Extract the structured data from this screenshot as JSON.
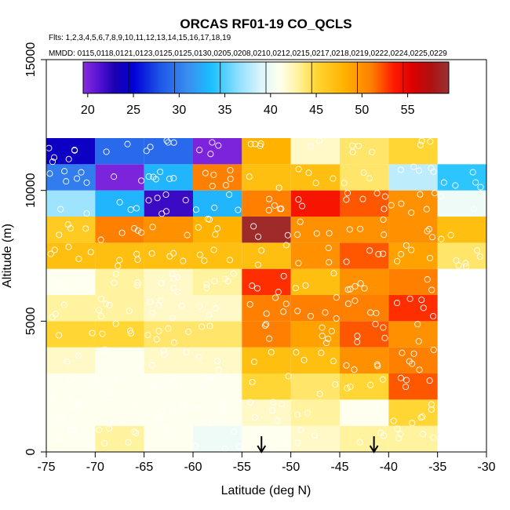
{
  "chart_data": {
    "type": "heatmap",
    "title": "ORCAS RF01-19 CO_QCLS",
    "flights_label": "Flts: 1,2,3,4,5,6,7,8,9,10,11,12,13,14,15,16,17,18,19",
    "dates_label": "MMDD: 0115,0118,0121,0123,0125,0125,0130,0205,0208,0210,0212,0215,0217,0218,0219,0222,0224,0225,0229",
    "xlabel": "Latitude (deg N)",
    "ylabel": "Altitude (m)",
    "xlim": [
      -75,
      -30
    ],
    "ylim": [
      0,
      15000
    ],
    "x_ticks": [
      -75,
      -70,
      -65,
      -60,
      -55,
      -50,
      -45,
      -40,
      -35,
      -30
    ],
    "x_tick_labels": [
      "-75",
      "-70",
      "-65",
      "-60",
      "-55",
      "-50",
      "-45",
      "-40",
      "-35",
      "-30"
    ],
    "y_ticks": [
      0,
      5000,
      10000,
      15000
    ],
    "y_tick_labels": [
      "0",
      "5000",
      "10000",
      "15000"
    ],
    "lat_edges": [
      -75,
      -70,
      -65,
      -60,
      -55,
      -50,
      -45,
      -40,
      -35,
      -30
    ],
    "alt_bin_height": 1000,
    "colorbar": {
      "range": [
        19.5,
        59.5
      ],
      "ticks": [
        20,
        25,
        30,
        35,
        40,
        45,
        50,
        55
      ],
      "tick_labels": [
        "20",
        "25",
        "30",
        "35",
        "40",
        "45",
        "50",
        "55"
      ],
      "stops": [
        {
          "v": 19.5,
          "c": "#8b2be0"
        },
        {
          "v": 21.5,
          "c": "#4b0fd0"
        },
        {
          "v": 23.0,
          "c": "#1a00b0"
        },
        {
          "v": 25.0,
          "c": "#0000d8"
        },
        {
          "v": 28.0,
          "c": "#1f58e8"
        },
        {
          "v": 31.0,
          "c": "#3a8ff0"
        },
        {
          "v": 33.5,
          "c": "#19bfff"
        },
        {
          "v": 36.5,
          "c": "#8ee0ff"
        },
        {
          "v": 39.0,
          "c": "#ddf6fb"
        },
        {
          "v": 41.0,
          "c": "#fffff0"
        },
        {
          "v": 43.0,
          "c": "#fff3a0"
        },
        {
          "v": 45.0,
          "c": "#ffd633"
        },
        {
          "v": 48.0,
          "c": "#ffb300"
        },
        {
          "v": 51.0,
          "c": "#ff8000"
        },
        {
          "v": 53.5,
          "c": "#ff1a00"
        },
        {
          "v": 55.5,
          "c": "#dd0000"
        },
        {
          "v": 57.5,
          "c": "#b01010"
        },
        {
          "v": 59.5,
          "c": "#993333"
        }
      ],
      "segment_lines": [
        19.5,
        24.5,
        29.5,
        34.5,
        39.5,
        44.5,
        49.5,
        54.5,
        59.5
      ]
    },
    "series": [
      {
        "name": "-75 to -70",
        "bins": [
          {
            "alt": 0,
            "value": 41
          },
          {
            "alt": 1000,
            "value": 41
          },
          {
            "alt": 2000,
            "value": 41
          },
          {
            "alt": 3000,
            "value": 42
          },
          {
            "alt": 4000,
            "value": 45
          },
          {
            "alt": 5000,
            "value": 43
          },
          {
            "alt": 6000,
            "value": 41
          },
          {
            "alt": 7000,
            "value": 47
          },
          {
            "alt": 8000,
            "value": 46
          },
          {
            "alt": 9000,
            "value": 37
          },
          {
            "alt": 10000,
            "value": 30
          },
          {
            "alt": 11000,
            "value": 24
          }
        ]
      },
      {
        "name": "-70 to -65",
        "bins": [
          {
            "alt": 0,
            "value": 43
          },
          {
            "alt": 1000,
            "value": 41
          },
          {
            "alt": 2000,
            "value": 41
          },
          {
            "alt": 3000,
            "value": 41
          },
          {
            "alt": 4000,
            "value": 45
          },
          {
            "alt": 5000,
            "value": 43
          },
          {
            "alt": 6000,
            "value": 43
          },
          {
            "alt": 7000,
            "value": 47
          },
          {
            "alt": 8000,
            "value": 51
          },
          {
            "alt": 9000,
            "value": 33
          },
          {
            "alt": 10000,
            "value": 20
          },
          {
            "alt": 11000,
            "value": 29
          }
        ]
      },
      {
        "name": "-65 to -60",
        "bins": [
          {
            "alt": 0,
            "value": 41
          },
          {
            "alt": 1000,
            "value": 41
          },
          {
            "alt": 2000,
            "value": 41
          },
          {
            "alt": 3000,
            "value": 42
          },
          {
            "alt": 4000,
            "value": 44
          },
          {
            "alt": 5000,
            "value": 42
          },
          {
            "alt": 6000,
            "value": 42
          },
          {
            "alt": 7000,
            "value": 47
          },
          {
            "alt": 8000,
            "value": 50
          },
          {
            "alt": 9000,
            "value": 22
          },
          {
            "alt": 10000,
            "value": 33
          },
          {
            "alt": 11000,
            "value": 29
          }
        ]
      },
      {
        "name": "-60 to -55",
        "bins": [
          {
            "alt": 0,
            "value": 40
          },
          {
            "alt": 1000,
            "value": 41
          },
          {
            "alt": 2000,
            "value": 41
          },
          {
            "alt": 3000,
            "value": 42
          },
          {
            "alt": 4000,
            "value": 44
          },
          {
            "alt": 5000,
            "value": 42
          },
          {
            "alt": 6000,
            "value": 43
          },
          {
            "alt": 7000,
            "value": 47
          },
          {
            "alt": 8000,
            "value": 48
          },
          {
            "alt": 9000,
            "value": 33
          },
          {
            "alt": 10000,
            "value": 51
          },
          {
            "alt": 11000,
            "value": 20
          }
        ]
      },
      {
        "name": "-55 to -50",
        "bins": [
          {
            "alt": 0,
            "value": 41
          },
          {
            "alt": 1000,
            "value": 42
          },
          {
            "alt": 2000,
            "value": 45
          },
          {
            "alt": 3000,
            "value": 47
          },
          {
            "alt": 4000,
            "value": 51
          },
          {
            "alt": 5000,
            "value": 51
          },
          {
            "alt": 6000,
            "value": 53
          },
          {
            "alt": 7000,
            "value": 47
          },
          {
            "alt": 8000,
            "value": 59
          },
          {
            "alt": 9000,
            "value": 51
          },
          {
            "alt": 10000,
            "value": 47
          },
          {
            "alt": 11000,
            "value": 48
          }
        ]
      },
      {
        "name": "-50 to -45",
        "bins": [
          {
            "alt": 0,
            "value": 42
          },
          {
            "alt": 1000,
            "value": 43
          },
          {
            "alt": 2000,
            "value": 44
          },
          {
            "alt": 3000,
            "value": 47
          },
          {
            "alt": 4000,
            "value": 49
          },
          {
            "alt": 5000,
            "value": 51
          },
          {
            "alt": 6000,
            "value": 47
          },
          {
            "alt": 7000,
            "value": 50
          },
          {
            "alt": 8000,
            "value": 50
          },
          {
            "alt": 9000,
            "value": 54
          },
          {
            "alt": 10000,
            "value": 47
          },
          {
            "alt": 11000,
            "value": 42
          }
        ]
      },
      {
        "name": "-45 to -40",
        "bins": [
          {
            "alt": 0,
            "value": 43
          },
          {
            "alt": 1000,
            "value": 41
          },
          {
            "alt": 2000,
            "value": 45
          },
          {
            "alt": 3000,
            "value": 50
          },
          {
            "alt": 4000,
            "value": 52
          },
          {
            "alt": 5000,
            "value": 51
          },
          {
            "alt": 6000,
            "value": 50
          },
          {
            "alt": 7000,
            "value": 52
          },
          {
            "alt": 8000,
            "value": 50
          },
          {
            "alt": 9000,
            "value": 52
          },
          {
            "alt": 10000,
            "value": 44
          },
          {
            "alt": 11000,
            "value": 44
          }
        ]
      },
      {
        "name": "-40 to -35",
        "bins": [
          {
            "alt": 0,
            "value": 43
          },
          {
            "alt": 1000,
            "value": 45
          },
          {
            "alt": 2000,
            "value": 52
          },
          {
            "alt": 3000,
            "value": 51
          },
          {
            "alt": 4000,
            "value": 50
          },
          {
            "alt": 5000,
            "value": 53
          },
          {
            "alt": 6000,
            "value": 51
          },
          {
            "alt": 7000,
            "value": 49
          },
          {
            "alt": 8000,
            "value": 50
          },
          {
            "alt": 9000,
            "value": 50
          },
          {
            "alt": 10000,
            "value": 38
          },
          {
            "alt": 11000,
            "value": 45
          }
        ]
      },
      {
        "name": "-35 to -30",
        "bins": [
          {
            "alt": 7000,
            "value": 44
          },
          {
            "alt": 8000,
            "value": 47
          },
          {
            "alt": 9000,
            "value": 40
          },
          {
            "alt": 10000,
            "value": 34
          }
        ]
      }
    ],
    "markers": [
      {
        "type": "arrow-down",
        "lat": -53,
        "alt": 0
      },
      {
        "type": "arrow-down",
        "lat": -41.5,
        "alt": 0
      }
    ]
  },
  "colors": {
    "background": "#ffffff",
    "axis": "#000000",
    "point_outline": "#ffffff"
  }
}
